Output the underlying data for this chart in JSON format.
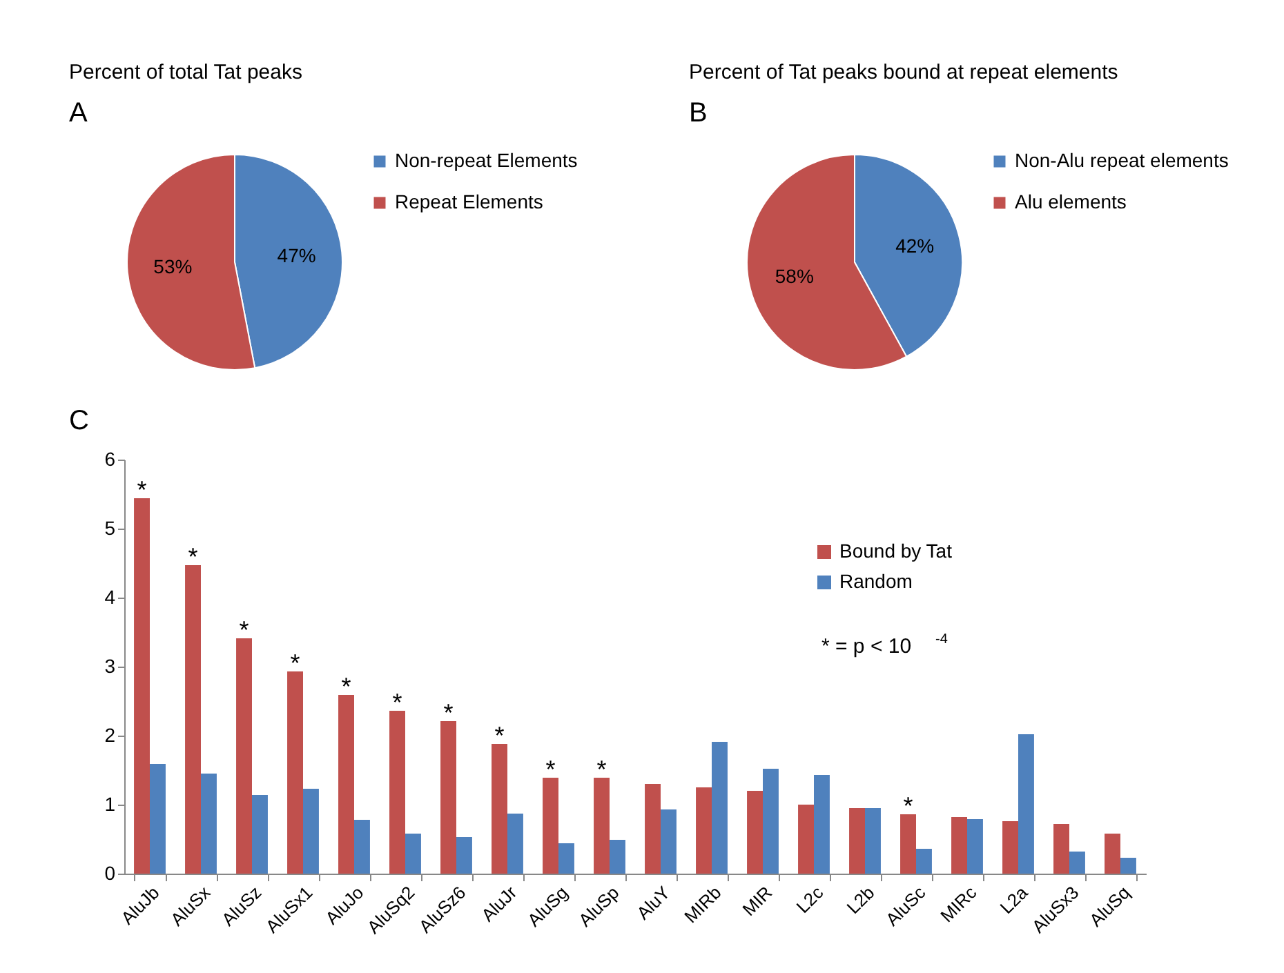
{
  "chart_data": [
    {
      "type": "pie",
      "title": "Percent of total Tat peaks",
      "annotations": [
        "A"
      ],
      "categories": [
        "Non-repeat Elements",
        "Repeat Elements"
      ],
      "values": [
        47,
        53
      ],
      "colors": [
        "#4f81bd",
        "#c0504d"
      ],
      "value_labels": [
        "47%",
        "53%"
      ],
      "legend": "right"
    },
    {
      "type": "pie",
      "title": "Percent of Tat peaks bound at repeat elements",
      "annotations": [
        "B"
      ],
      "categories": [
        "Non-Alu repeat elements",
        "Alu elements"
      ],
      "values": [
        42,
        58
      ],
      "colors": [
        "#4f81bd",
        "#c0504d"
      ],
      "value_labels": [
        "42%",
        "58%"
      ],
      "legend": "right"
    },
    {
      "type": "bar",
      "categories": [
        "AluJb",
        "AluSx",
        "AluSz",
        "AluSx1",
        "AluJo",
        "AluSq2",
        "AluSz6",
        "AluJr",
        "AluSg",
        "AluSp",
        "AluY",
        "MIRb",
        "MIR",
        "L2c",
        "L2b",
        "AluSc",
        "MIRc",
        "L2a",
        "AluSx3",
        "AluSq"
      ],
      "series": [
        {
          "name": "Bound by Tat",
          "color": "#c0504d",
          "values": [
            5.44,
            4.47,
            3.41,
            2.93,
            2.59,
            2.36,
            2.21,
            1.88,
            1.39,
            1.39,
            1.3,
            1.25,
            1.2,
            1.0,
            0.95,
            0.86,
            0.82,
            0.76,
            0.72,
            0.58
          ]
        },
        {
          "name": "Random",
          "color": "#4f81bd",
          "values": [
            1.59,
            1.45,
            1.14,
            1.23,
            0.78,
            0.58,
            0.53,
            0.87,
            0.44,
            0.49,
            0.93,
            1.91,
            1.52,
            1.43,
            0.95,
            0.36,
            0.79,
            2.02,
            0.32,
            0.23
          ]
        }
      ],
      "ylim": [
        0,
        6
      ],
      "yticks": [
        0,
        1,
        2,
        3,
        4,
        5,
        6
      ],
      "grid": false,
      "legend": "top right",
      "annotations": [
        "C",
        "* = p < 10$^{-4}$",
        {
          "text": "*",
          "x": "AluJb",
          "y": 5.44
        },
        {
          "text": "*",
          "x": "AluSx",
          "y": 4.47
        },
        {
          "text": "*",
          "x": "AluSz",
          "y": 3.41
        },
        {
          "text": "*",
          "x": "AluSx1",
          "y": 2.93
        },
        {
          "text": "*",
          "x": "AluJo",
          "y": 2.59
        },
        {
          "text": "*",
          "x": "AluSq2",
          "y": 2.36
        },
        {
          "text": "*",
          "x": "AluSz6",
          "y": 2.21
        },
        {
          "text": "*",
          "x": "AluJr",
          "y": 1.88
        },
        {
          "text": "*",
          "x": "AluSg",
          "y": 1.39
        },
        {
          "text": "*",
          "x": "AluSp",
          "y": 1.39
        },
        {
          "text": "*",
          "x": "AluSc",
          "y": 0.86
        }
      ]
    }
  ]
}
